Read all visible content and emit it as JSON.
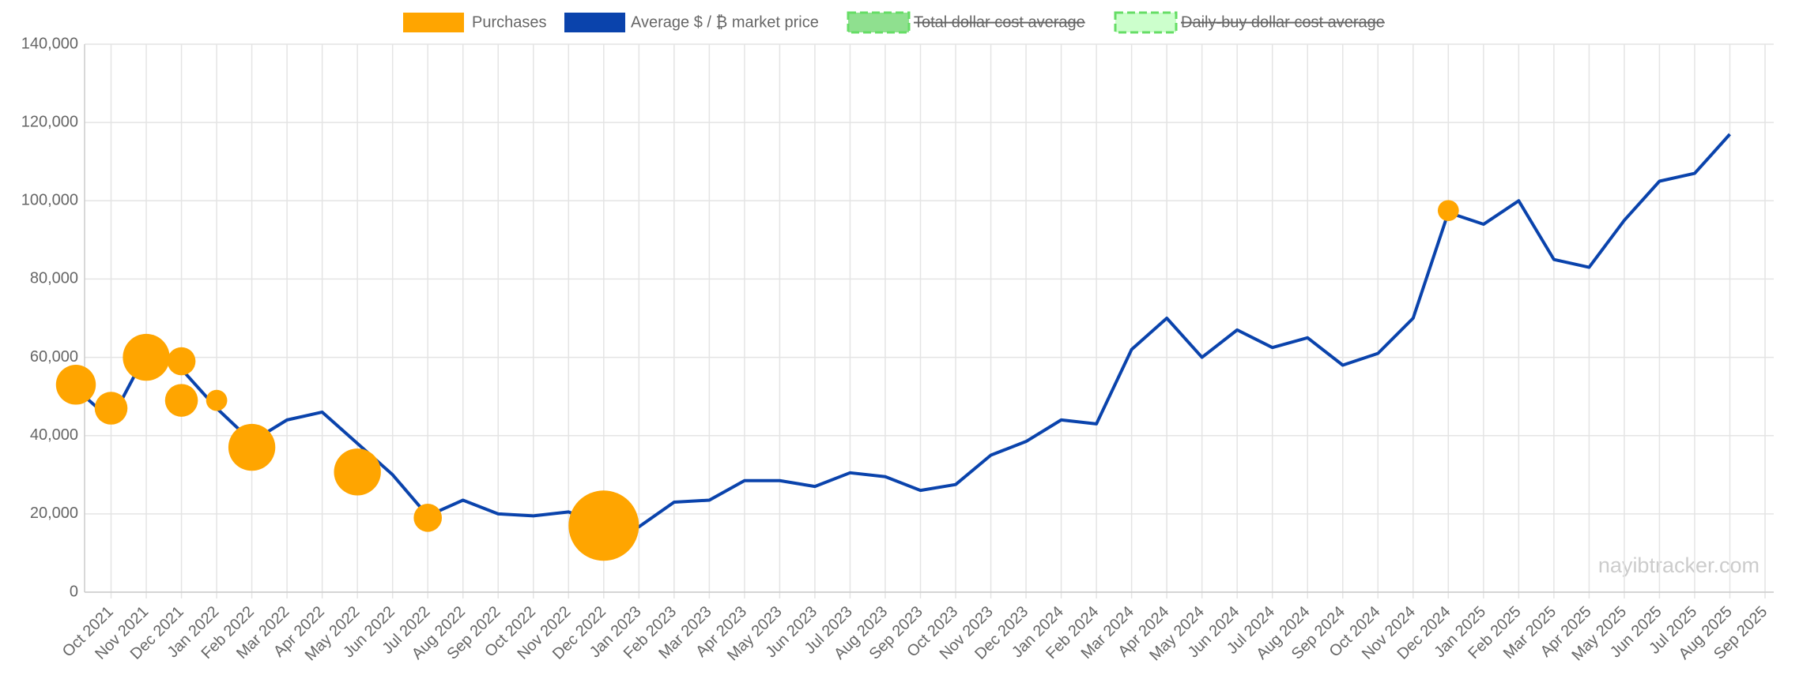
{
  "chart_data": {
    "type": "line",
    "watermark": "nayibtracker.com",
    "grid": true,
    "legend": "top",
    "series": [
      {
        "name": "Purchases",
        "color": "#ffa500",
        "type": "bubble",
        "x": [
          "Sep 2021",
          "Oct 2021",
          "Nov 2021",
          "Dec 2021",
          "Dec 2021",
          "Jan 2022",
          "Feb 2022",
          "May 2022",
          "Jul 2022",
          "Dec 2022",
          "Dec 2024"
        ],
        "values": [
          53000,
          47000,
          60000,
          59000,
          49000,
          49000,
          37000,
          30700,
          19000,
          17000,
          97500
        ],
        "sizes": [
          17,
          14,
          20,
          12,
          14,
          9,
          20,
          20,
          12,
          30,
          9
        ]
      },
      {
        "name": "Average $ / ₿ market price",
        "color": "#0a43ac",
        "x": [
          "Sep 2021",
          "Oct 2021",
          "Nov 2021",
          "Dec 2021",
          "Jan 2022",
          "Feb 2022",
          "Mar 2022",
          "Apr 2022",
          "May 2022",
          "Jun 2022",
          "Jul 2022",
          "Aug 2022",
          "Sep 2022",
          "Oct 2022",
          "Nov 2022",
          "Dec 2022",
          "Jan 2023",
          "Feb 2023",
          "Mar 2023",
          "Apr 2023",
          "May 2023",
          "Jun 2023",
          "Jul 2023",
          "Aug 2023",
          "Sep 2023",
          "Oct 2023",
          "Nov 2023",
          "Dec 2023",
          "Jan 2024",
          "Feb 2024",
          "Mar 2024",
          "Apr 2024",
          "May 2024",
          "Jun 2024",
          "Jul 2024",
          "Aug 2024",
          "Sep 2024",
          "Oct 2024",
          "Nov 2024",
          "Dec 2024",
          "Jan 2025",
          "Feb 2025",
          "Mar 2025",
          "Apr 2025",
          "May 2025",
          "Jun 2025",
          "Jul 2025",
          "Aug 2025"
        ],
        "values": [
          52000,
          44000,
          61000,
          57000,
          47000,
          38500,
          44000,
          46000,
          38000,
          30000,
          19500,
          23500,
          20000,
          19500,
          20500,
          17000,
          16700,
          23000,
          23500,
          28500,
          28500,
          27000,
          30500,
          29500,
          26000,
          27500,
          35000,
          38500,
          44000,
          43000,
          62000,
          70000,
          60000,
          67000,
          62500,
          65000,
          58000,
          61000,
          70000,
          97000,
          94000,
          100000,
          85000,
          83000,
          95000,
          105000,
          107000,
          117000
        ]
      },
      {
        "name": "Total dollar cost average",
        "color": "#8fe08f",
        "hidden": true
      },
      {
        "name": "Daily-buy dollar cost average",
        "color": "#ccffcc",
        "hidden": true
      }
    ],
    "xlim": [
      "Sep 2021",
      "Sep 2025"
    ],
    "xticks": [
      "Oct 2021",
      "Nov 2021",
      "Dec 2021",
      "Jan 2022",
      "Feb 2022",
      "Mar 2022",
      "Apr 2022",
      "May 2022",
      "Jun 2022",
      "Jul 2022",
      "Aug 2022",
      "Sep 2022",
      "Oct 2022",
      "Nov 2022",
      "Dec 2022",
      "Jan 2023",
      "Feb 2023",
      "Mar 2023",
      "Apr 2023",
      "May 2023",
      "Jun 2023",
      "Jul 2023",
      "Aug 2023",
      "Sep 2023",
      "Oct 2023",
      "Nov 2023",
      "Dec 2023",
      "Jan 2024",
      "Feb 2024",
      "Mar 2024",
      "Apr 2024",
      "May 2024",
      "Jun 2024",
      "Jul 2024",
      "Aug 2024",
      "Sep 2024",
      "Oct 2024",
      "Nov 2024",
      "Dec 2024",
      "Jan 2025",
      "Feb 2025",
      "Mar 2025",
      "Apr 2025",
      "May 2025",
      "Jun 2025",
      "Jul 2025",
      "Aug 2025",
      "Sep 2025"
    ],
    "ylim": [
      0,
      140000
    ],
    "yticks": [
      0,
      {
        "value": 20000,
        "label": "20,000"
      },
      {
        "value": 40000,
        "label": "40,000"
      },
      {
        "value": 60000,
        "label": "60,000"
      },
      {
        "value": 80000,
        "label": "80,000"
      },
      {
        "value": 100000,
        "label": "100,000"
      },
      {
        "value": 120000,
        "label": "120,000"
      },
      {
        "value": 140000,
        "label": "140,000"
      }
    ]
  }
}
